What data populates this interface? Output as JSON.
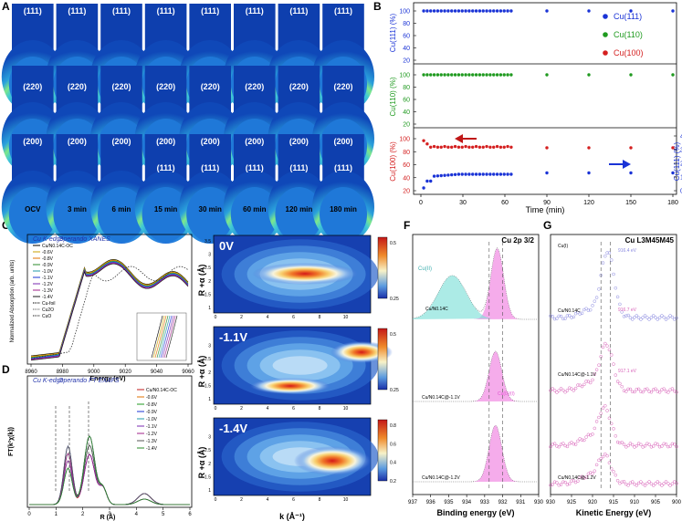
{
  "panel_labels": {
    "A": "A",
    "B": "B",
    "C": "C",
    "D": "D",
    "E": "E",
    "F": "F",
    "G": "G"
  },
  "panelA": {
    "rows": [
      [
        "(111)",
        "(111)",
        "(111)",
        "(111)",
        "(111)",
        "(111)",
        "(111)"
      ],
      [
        "(220)",
        "(220)",
        "(220)",
        "(220)",
        "(220)",
        "(220)",
        "(220)"
      ],
      [
        "(200)",
        "(200)",
        "(200)",
        "(200)",
        "(200)",
        "(200)",
        "(200)"
      ]
    ],
    "row3_second": [
      "",
      "",
      "(111)",
      "(111)",
      "(111)",
      "(111)",
      "(111)"
    ],
    "times": [
      "OCV",
      "3 min",
      "6 min",
      "15 min",
      "30 min",
      "60 min",
      "120 min",
      "180 min"
    ]
  },
  "panelB": {
    "ylabels": [
      "Cu(111) (%)",
      "Cu(110) (%)",
      "Cu(100) (%)",
      "Cu(111) (%)"
    ],
    "ticks_top": [
      "100",
      "80",
      "60",
      "40",
      "20"
    ],
    "ticks_mid": [
      "100",
      "80",
      "60",
      "40",
      "20"
    ],
    "ticks_bot_left": [
      "100",
      "80",
      "60",
      "40",
      "20"
    ],
    "ticks_bot_right": [
      "40",
      "30",
      "20",
      "10",
      "0"
    ],
    "xticks": [
      "0",
      "30",
      "60",
      "90",
      "120",
      "150",
      "180"
    ],
    "xlabel": "Time (min)",
    "legend": [
      "Cu(111)",
      "Cu(110)",
      "Cu(100)"
    ],
    "colors": {
      "c111": "#1a33d6",
      "c110": "#1f9a1f",
      "c100": "#d42020"
    }
  },
  "panelC": {
    "title_a": "Cu K-edge",
    "title_b": "Operando XANES",
    "ylabel": "Normalized Absorption (arb. units)",
    "xlabel": "Energy (eV)",
    "xticks": [
      "8960",
      "8980",
      "9000",
      "9020",
      "9040",
      "9060"
    ],
    "legend": [
      "Cu/N0.14C-OC",
      "-0.6V",
      "-0.8V",
      "-0.9V",
      "-1.0V",
      "-1.1V",
      "-1.2V",
      "-1.3V",
      "-1.4V",
      "Cu-foil",
      "Cu2O",
      "CuO"
    ]
  },
  "panelD": {
    "title_a": "Cu K-edge",
    "title_b": "Operando FT EXAFS",
    "ylabel": "FT(k²χ(k))",
    "xlabel": "R (Å)",
    "xticks": [
      "0",
      "1",
      "2",
      "3",
      "4",
      "5",
      "6"
    ],
    "legend": [
      "Cu/N0.14C-OC",
      "-0.6V",
      "-0.8V",
      "-0.9V",
      "-1.0V",
      "-1.1V",
      "-1.2V",
      "-1.3V",
      "-1.4V"
    ]
  },
  "panelE": {
    "labels": [
      "0V",
      "-1.1V",
      "-1.4V"
    ],
    "ylabel": "R +α (Å)",
    "xlabel": "k (Å⁻¹)",
    "yticks": [
      "3.5",
      "3",
      "2.5",
      "2",
      "1.5",
      "1"
    ],
    "xticks": [
      "0",
      "2",
      "4",
      "6",
      "8",
      "10"
    ],
    "cbar1": [
      "0.5",
      "0.25"
    ],
    "cbar2": [
      "0.5",
      "0.25"
    ],
    "cbar3": [
      "0.8",
      "0.6",
      "0.4",
      "0.2"
    ]
  },
  "panelF": {
    "title": "Cu 2p 3/2",
    "xlabel": "Binding energy (eV)",
    "xticks": [
      "937",
      "936",
      "935",
      "934",
      "933",
      "932",
      "931",
      "930"
    ],
    "labels": [
      "Cu(II)",
      "Cu/N0.14C",
      "Cu/N0.14C@-1.1V",
      "Cu(0)/(I)",
      "Cu/N0.14C@-1.2V"
    ]
  },
  "panelG": {
    "title": "Cu L3M45M45",
    "xlabel": "Kinetic Energy (eV)",
    "xticks": [
      "930",
      "925",
      "920",
      "915",
      "910",
      "905",
      "900"
    ],
    "labels": [
      "Cu(I)",
      "Cu/N0.14C",
      "Cu/N0.14C@-1.1V",
      "Cu/N0.14C@-1.2V"
    ],
    "peaks": [
      "916.4 eV",
      "916.7 eV",
      "917.1 eV"
    ]
  }
}
